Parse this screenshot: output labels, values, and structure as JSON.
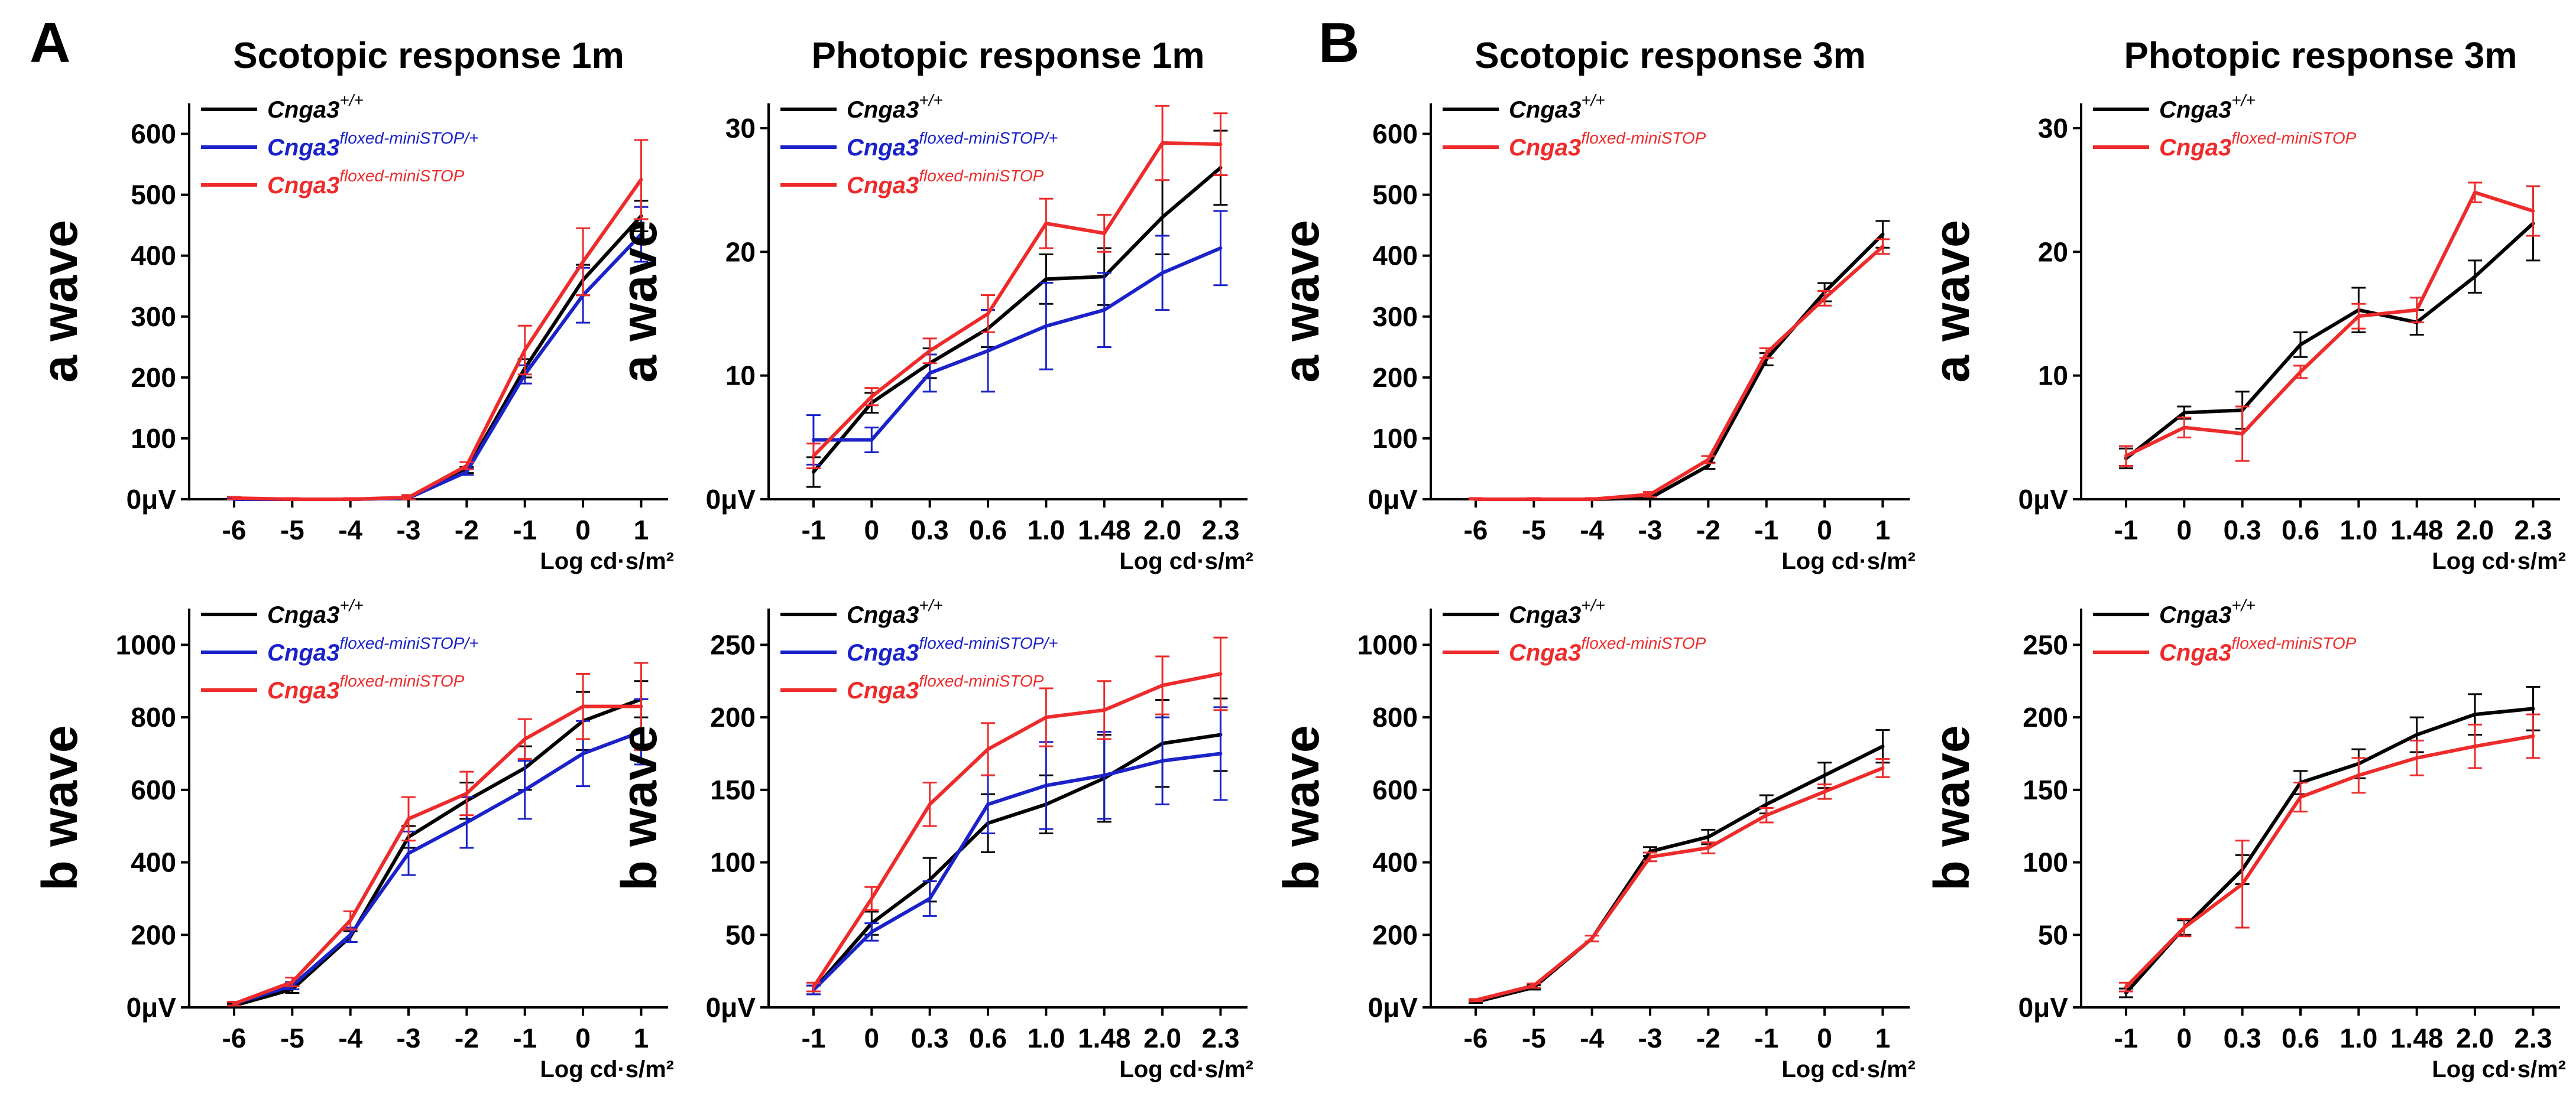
{
  "figure": {
    "panel_labels": [
      "A",
      "B"
    ],
    "colors": {
      "wt": "#000000",
      "het": "#1a22c8",
      "floxed": "#ee2b2b"
    }
  },
  "chart_data": [
    {
      "id": "A1",
      "type": "line",
      "title": "Scotopic response 1m",
      "ylabel": "a wave",
      "xlabel": "Log cd·s/m²",
      "categories": [
        "-6",
        "-5",
        "-4",
        "-3",
        "-2",
        "-1",
        "0",
        "1"
      ],
      "ylim": [
        0,
        650
      ],
      "yticks": [
        0,
        100,
        200,
        300,
        400,
        500,
        600
      ],
      "ytick_labels": [
        "0μV",
        "100",
        "200",
        "300",
        "400",
        "500",
        "600"
      ],
      "series": [
        {
          "name": "Cnga3",
          "sup": "+/+",
          "color": "#000000",
          "values": [
            0,
            0,
            0,
            2,
            48,
            215,
            360,
            465
          ],
          "err": [
            2,
            2,
            2,
            3,
            5,
            15,
            25,
            25
          ]
        },
        {
          "name": "Cnga3",
          "sup": "floxed-miniSTOP/+",
          "color": "#1a22c8",
          "values": [
            0,
            0,
            0,
            2,
            45,
            205,
            335,
            435
          ],
          "err": [
            2,
            2,
            2,
            3,
            5,
            15,
            45,
            45
          ]
        },
        {
          "name": "Cnga3",
          "sup": "floxed-miniSTOP",
          "color": "#ee2b2b",
          "values": [
            2,
            0,
            0,
            3,
            55,
            245,
            390,
            525
          ],
          "err": [
            2,
            2,
            2,
            4,
            6,
            40,
            55,
            65
          ]
        }
      ]
    },
    {
      "id": "A2",
      "type": "line",
      "title": "Photopic response 1m",
      "ylabel": "a wave",
      "xlabel": "Log cd·s/m²",
      "categories": [
        "-1",
        "0",
        "0.3",
        "0.6",
        "1.0",
        "1.48",
        "2.0",
        "2.3"
      ],
      "ylim": [
        0,
        32
      ],
      "yticks": [
        0,
        10,
        20,
        30
      ],
      "ytick_labels": [
        "0μV",
        "10",
        "20",
        "30"
      ],
      "series": [
        {
          "name": "Cnga3",
          "sup": "+/+",
          "color": "#000000",
          "values": [
            2.2,
            7.8,
            11.0,
            13.8,
            17.8,
            18.0,
            22.8,
            26.8
          ],
          "err": [
            1.2,
            0.8,
            1.2,
            1.5,
            2.0,
            2.3,
            3.0,
            3.0
          ]
        },
        {
          "name": "Cnga3",
          "sup": "floxed-miniSTOP/+",
          "color": "#1a22c8",
          "values": [
            4.8,
            4.8,
            10.2,
            12.0,
            14.0,
            15.3,
            18.3,
            20.3
          ],
          "err": [
            2.0,
            1.0,
            1.5,
            3.3,
            3.5,
            3.0,
            3.0,
            3.0
          ]
        },
        {
          "name": "Cnga3",
          "sup": "floxed-miniSTOP",
          "color": "#ee2b2b",
          "values": [
            3.5,
            8.3,
            12.0,
            15.0,
            22.3,
            21.5,
            28.8,
            28.7
          ],
          "err": [
            1.0,
            0.7,
            1.0,
            1.5,
            2.0,
            1.5,
            3.0,
            2.5
          ]
        }
      ]
    },
    {
      "id": "B1",
      "type": "line",
      "title": "Scotopic response 3m",
      "ylabel": "a wave",
      "xlabel": "Log cd·s/m²",
      "categories": [
        "-6",
        "-5",
        "-4",
        "-3",
        "-2",
        "-1",
        "0",
        "1"
      ],
      "ylim": [
        0,
        650
      ],
      "yticks": [
        0,
        100,
        200,
        300,
        400,
        500,
        600
      ],
      "ytick_labels": [
        "0μV",
        "100",
        "200",
        "300",
        "400",
        "500",
        "600"
      ],
      "series": [
        {
          "name": "Cnga3",
          "sup": "+/+",
          "color": "#000000",
          "values": [
            0,
            0,
            0,
            2,
            55,
            230,
            340,
            435
          ],
          "err": [
            2,
            2,
            2,
            3,
            5,
            10,
            15,
            22
          ]
        },
        {
          "name": "Cnga3",
          "sup": "floxed-miniSTOP",
          "color": "#ee2b2b",
          "values": [
            0,
            0,
            0,
            8,
            65,
            240,
            330,
            415
          ],
          "err": [
            2,
            2,
            2,
            4,
            6,
            8,
            12,
            12
          ]
        }
      ]
    },
    {
      "id": "B2",
      "type": "line",
      "title": "Photopic response 3m",
      "ylabel": "a wave",
      "xlabel": "Log cd·s/m²",
      "categories": [
        "-1",
        "0",
        "0.3",
        "0.6",
        "1.0",
        "1.48",
        "2.0",
        "2.3"
      ],
      "ylim": [
        0,
        32
      ],
      "yticks": [
        0,
        10,
        20,
        30
      ],
      "ytick_labels": [
        "0μV",
        "10",
        "20",
        "30"
      ],
      "series": [
        {
          "name": "Cnga3",
          "sup": "+/+",
          "color": "#000000",
          "values": [
            3.3,
            7.0,
            7.2,
            12.5,
            15.3,
            14.3,
            18.0,
            22.3
          ],
          "err": [
            0.8,
            0.5,
            1.5,
            1.0,
            1.8,
            1.0,
            1.3,
            3.0
          ]
        },
        {
          "name": "Cnga3",
          "sup": "floxed-miniSTOP",
          "color": "#ee2b2b",
          "values": [
            3.5,
            5.8,
            5.3,
            10.3,
            14.8,
            15.3,
            24.8,
            23.3
          ],
          "err": [
            0.8,
            0.8,
            2.2,
            0.5,
            1.0,
            1.0,
            0.8,
            2.0
          ]
        }
      ]
    },
    {
      "id": "A3",
      "type": "line",
      "title": "",
      "ylabel": "b wave",
      "xlabel": "Log cd·s/m²",
      "categories": [
        "-6",
        "-5",
        "-4",
        "-3",
        "-2",
        "-1",
        "0",
        "1"
      ],
      "ylim": [
        0,
        1100
      ],
      "yticks": [
        0,
        200,
        400,
        600,
        800,
        1000
      ],
      "ytick_labels": [
        "0μV",
        "200",
        "400",
        "600",
        "800",
        "1000"
      ],
      "series": [
        {
          "name": "Cnga3",
          "sup": "+/+",
          "color": "#000000",
          "values": [
            5,
            50,
            195,
            470,
            570,
            660,
            790,
            850
          ],
          "err": [
            5,
            10,
            15,
            30,
            50,
            60,
            80,
            50
          ]
        },
        {
          "name": "Cnga3",
          "sup": "floxed-miniSTOP/+",
          "color": "#1a22c8",
          "values": [
            10,
            60,
            200,
            425,
            510,
            600,
            700,
            760
          ],
          "err": [
            5,
            10,
            20,
            60,
            70,
            80,
            90,
            90
          ]
        },
        {
          "name": "Cnga3",
          "sup": "floxed-miniSTOP",
          "color": "#ee2b2b",
          "values": [
            10,
            70,
            240,
            520,
            590,
            740,
            830,
            830
          ],
          "err": [
            5,
            12,
            25,
            60,
            60,
            55,
            90,
            120
          ]
        }
      ]
    },
    {
      "id": "A4",
      "type": "line",
      "title": "",
      "ylabel": "b wave",
      "xlabel": "Log cd·s/m²",
      "categories": [
        "-1",
        "0",
        "0.3",
        "0.6",
        "1.0",
        "1.48",
        "2.0",
        "2.3"
      ],
      "ylim": [
        0,
        275
      ],
      "yticks": [
        0,
        50,
        100,
        150,
        200,
        250
      ],
      "ytick_labels": [
        "0μV",
        "50",
        "100",
        "150",
        "200",
        "250"
      ],
      "series": [
        {
          "name": "Cnga3",
          "sup": "+/+",
          "color": "#000000",
          "values": [
            12,
            58,
            88,
            127,
            140,
            158,
            182,
            188
          ],
          "err": [
            3,
            8,
            15,
            20,
            20,
            30,
            30,
            25
          ]
        },
        {
          "name": "Cnga3",
          "sup": "floxed-miniSTOP/+",
          "color": "#1a22c8",
          "values": [
            12,
            52,
            75,
            140,
            153,
            160,
            170,
            175
          ],
          "err": [
            3,
            6,
            12,
            20,
            30,
            30,
            30,
            32
          ]
        },
        {
          "name": "Cnga3",
          "sup": "floxed-miniSTOP",
          "color": "#ee2b2b",
          "values": [
            14,
            75,
            140,
            178,
            200,
            205,
            222,
            230
          ],
          "err": [
            3,
            8,
            15,
            18,
            20,
            20,
            20,
            25
          ]
        }
      ]
    },
    {
      "id": "B3",
      "type": "line",
      "title": "",
      "ylabel": "b wave",
      "xlabel": "Log cd·s/m²",
      "categories": [
        "-6",
        "-5",
        "-4",
        "-3",
        "-2",
        "-1",
        "0",
        "1"
      ],
      "ylim": [
        0,
        1100
      ],
      "yticks": [
        0,
        200,
        400,
        600,
        800,
        1000
      ],
      "ytick_labels": [
        "0μV",
        "200",
        "400",
        "600",
        "800",
        "1000"
      ],
      "series": [
        {
          "name": "Cnga3",
          "sup": "+/+",
          "color": "#000000",
          "values": [
            15,
            55,
            190,
            430,
            470,
            560,
            640,
            720
          ],
          "err": [
            3,
            6,
            8,
            12,
            20,
            25,
            35,
            45
          ]
        },
        {
          "name": "Cnga3",
          "sup": "floxed-miniSTOP",
          "color": "#ee2b2b",
          "values": [
            20,
            60,
            190,
            415,
            440,
            530,
            595,
            660
          ],
          "err": [
            3,
            6,
            8,
            12,
            15,
            20,
            20,
            25
          ]
        }
      ]
    },
    {
      "id": "B4",
      "type": "line",
      "title": "",
      "ylabel": "b wave",
      "xlabel": "Log cd·s/m²",
      "categories": [
        "-1",
        "0",
        "0.3",
        "0.6",
        "1.0",
        "1.48",
        "2.0",
        "2.3"
      ],
      "ylim": [
        0,
        275
      ],
      "yticks": [
        0,
        50,
        100,
        150,
        200,
        250
      ],
      "ytick_labels": [
        "0μV",
        "50",
        "100",
        "150",
        "200",
        "250"
      ],
      "series": [
        {
          "name": "Cnga3",
          "sup": "+/+",
          "color": "#000000",
          "values": [
            10,
            55,
            95,
            155,
            168,
            188,
            202,
            206
          ],
          "err": [
            3,
            5,
            10,
            8,
            10,
            12,
            14,
            15
          ]
        },
        {
          "name": "Cnga3",
          "sup": "floxed-miniSTOP",
          "color": "#ee2b2b",
          "values": [
            14,
            55,
            85,
            145,
            160,
            172,
            180,
            187
          ],
          "err": [
            3,
            6,
            30,
            10,
            12,
            12,
            15,
            15
          ]
        }
      ]
    }
  ]
}
